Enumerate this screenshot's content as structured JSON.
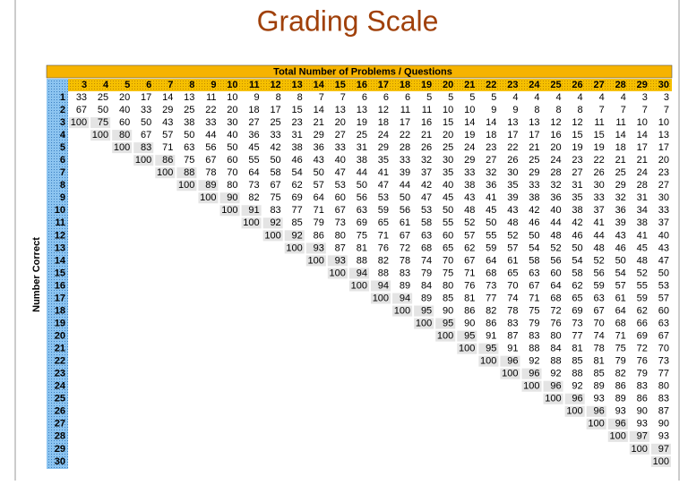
{
  "title": "Grading Scale",
  "table": {
    "header": "Total Number of Problems / Questions",
    "row_axis_label": "Number Correct",
    "columns": [
      3,
      4,
      5,
      6,
      7,
      8,
      9,
      10,
      11,
      12,
      13,
      14,
      15,
      16,
      17,
      18,
      19,
      20,
      21,
      22,
      23,
      24,
      25,
      26,
      27,
      28,
      29,
      30
    ],
    "rows": [
      {
        "label": 1,
        "values": [
          33,
          25,
          20,
          17,
          14,
          13,
          11,
          10,
          9,
          8,
          8,
          7,
          7,
          6,
          6,
          6,
          5,
          5,
          5,
          5,
          4,
          4,
          4,
          4,
          4,
          4,
          3,
          3
        ]
      },
      {
        "label": 2,
        "values": [
          67,
          50,
          40,
          33,
          29,
          25,
          22,
          20,
          18,
          17,
          15,
          14,
          13,
          13,
          12,
          11,
          11,
          10,
          10,
          9,
          9,
          8,
          8,
          8,
          7,
          7,
          7,
          7
        ]
      },
      {
        "label": 3,
        "values": [
          100,
          75,
          60,
          50,
          43,
          38,
          33,
          30,
          27,
          25,
          23,
          21,
          20,
          19,
          18,
          17,
          16,
          15,
          14,
          14,
          13,
          13,
          12,
          12,
          11,
          11,
          10,
          10
        ]
      },
      {
        "label": 4,
        "values": [
          100,
          80,
          67,
          57,
          50,
          44,
          40,
          36,
          33,
          31,
          29,
          27,
          25,
          24,
          22,
          21,
          20,
          19,
          18,
          17,
          17,
          16,
          15,
          15,
          14,
          14,
          13
        ]
      },
      {
        "label": 5,
        "values": [
          100,
          83,
          71,
          63,
          56,
          50,
          45,
          42,
          38,
          36,
          33,
          31,
          29,
          28,
          26,
          25,
          24,
          23,
          22,
          21,
          20,
          19,
          19,
          18,
          17,
          17
        ]
      },
      {
        "label": 6,
        "values": [
          100,
          86,
          75,
          67,
          60,
          55,
          50,
          46,
          43,
          40,
          38,
          35,
          33,
          32,
          30,
          29,
          27,
          26,
          25,
          24,
          23,
          22,
          21,
          21,
          20
        ]
      },
      {
        "label": 7,
        "values": [
          100,
          88,
          78,
          70,
          64,
          58,
          54,
          50,
          47,
          44,
          41,
          39,
          37,
          35,
          33,
          32,
          30,
          29,
          28,
          27,
          26,
          25,
          24,
          23
        ]
      },
      {
        "label": 8,
        "values": [
          100,
          89,
          80,
          73,
          67,
          62,
          57,
          53,
          50,
          47,
          44,
          42,
          40,
          38,
          36,
          35,
          33,
          32,
          31,
          30,
          29,
          28,
          27
        ]
      },
      {
        "label": 9,
        "values": [
          100,
          90,
          82,
          75,
          69,
          64,
          60,
          56,
          53,
          50,
          47,
          45,
          43,
          41,
          39,
          38,
          36,
          35,
          33,
          32,
          31,
          30
        ]
      },
      {
        "label": 10,
        "values": [
          100,
          91,
          83,
          77,
          71,
          67,
          63,
          59,
          56,
          53,
          50,
          48,
          45,
          43,
          42,
          40,
          38,
          37,
          36,
          34,
          33
        ]
      },
      {
        "label": 11,
        "values": [
          100,
          92,
          85,
          79,
          73,
          69,
          65,
          61,
          58,
          55,
          52,
          50,
          48,
          46,
          44,
          42,
          41,
          39,
          38,
          37
        ]
      },
      {
        "label": 12,
        "values": [
          100,
          92,
          86,
          80,
          75,
          71,
          67,
          63,
          60,
          57,
          55,
          52,
          50,
          48,
          46,
          44,
          43,
          41,
          40
        ]
      },
      {
        "label": 13,
        "values": [
          100,
          93,
          87,
          81,
          76,
          72,
          68,
          65,
          62,
          59,
          57,
          54,
          52,
          50,
          48,
          46,
          45,
          43
        ]
      },
      {
        "label": 14,
        "values": [
          100,
          93,
          88,
          82,
          78,
          74,
          70,
          67,
          64,
          61,
          58,
          56,
          54,
          52,
          50,
          48,
          47
        ]
      },
      {
        "label": 15,
        "values": [
          100,
          94,
          88,
          83,
          79,
          75,
          71,
          68,
          65,
          63,
          60,
          58,
          56,
          54,
          52,
          50
        ]
      },
      {
        "label": 16,
        "values": [
          100,
          94,
          89,
          84,
          80,
          76,
          73,
          70,
          67,
          64,
          62,
          59,
          57,
          55,
          53
        ]
      },
      {
        "label": 17,
        "values": [
          100,
          94,
          89,
          85,
          81,
          77,
          74,
          71,
          68,
          65,
          63,
          61,
          59,
          57
        ]
      },
      {
        "label": 18,
        "values": [
          100,
          95,
          90,
          86,
          82,
          78,
          75,
          72,
          69,
          67,
          64,
          62,
          60
        ]
      },
      {
        "label": 19,
        "values": [
          100,
          95,
          90,
          86,
          83,
          79,
          76,
          73,
          70,
          68,
          66,
          63
        ]
      },
      {
        "label": 20,
        "values": [
          100,
          95,
          91,
          87,
          83,
          80,
          77,
          74,
          71,
          69,
          67
        ]
      },
      {
        "label": 21,
        "values": [
          100,
          95,
          91,
          88,
          84,
          81,
          78,
          75,
          72,
          70
        ]
      },
      {
        "label": 22,
        "values": [
          100,
          96,
          92,
          88,
          85,
          81,
          79,
          76,
          73
        ]
      },
      {
        "label": 23,
        "values": [
          100,
          96,
          92,
          88,
          85,
          82,
          79,
          77
        ]
      },
      {
        "label": 24,
        "values": [
          100,
          96,
          92,
          89,
          86,
          83,
          80
        ]
      },
      {
        "label": 25,
        "values": [
          100,
          96,
          93,
          89,
          86,
          83
        ]
      },
      {
        "label": 26,
        "values": [
          100,
          96,
          93,
          90,
          87
        ]
      },
      {
        "label": 27,
        "values": [
          100,
          96,
          93,
          90
        ]
      },
      {
        "label": 28,
        "values": [
          100,
          97,
          93
        ]
      },
      {
        "label": 29,
        "values": [
          100,
          97
        ]
      },
      {
        "label": 30,
        "values": [
          100
        ]
      }
    ]
  }
}
